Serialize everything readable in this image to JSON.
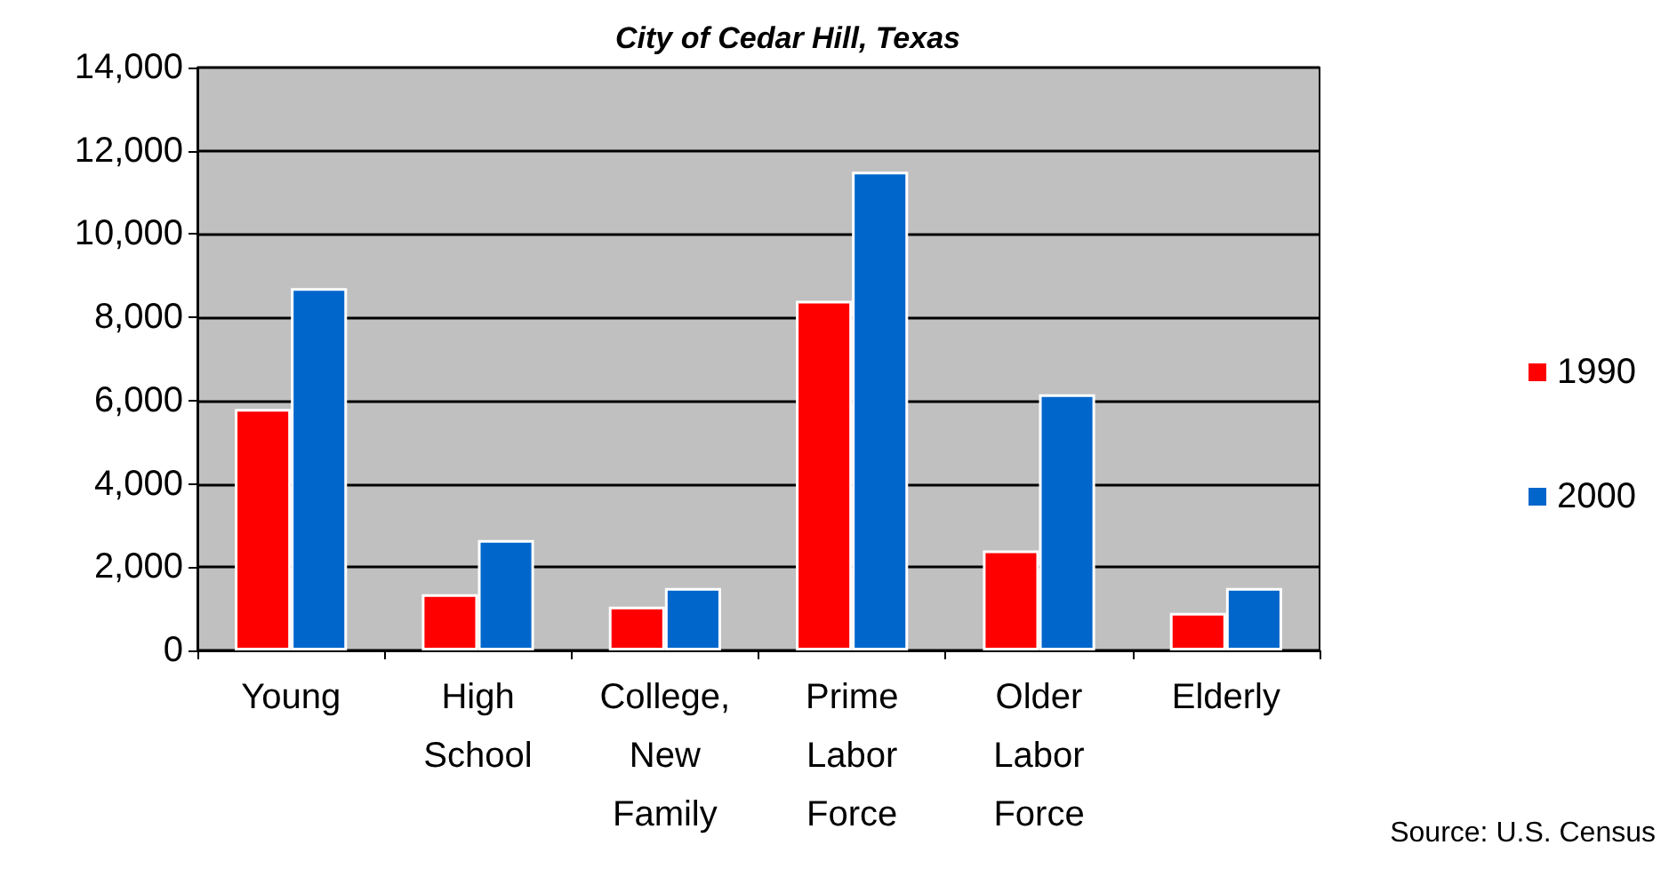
{
  "chart_data": {
    "type": "bar",
    "title": "City of Cedar Hill, Texas",
    "categories": [
      "Young",
      "High\nSchool",
      "College,\nNew\nFamily",
      "Prime\nLabor\nForce",
      "Older\nLabor\nForce",
      "Elderly"
    ],
    "series": [
      {
        "name": "1990",
        "color": "#ff0000",
        "values": [
          5800,
          1350,
          1050,
          8400,
          2400,
          900
        ]
      },
      {
        "name": "2000",
        "color": "#0066cc",
        "values": [
          8700,
          2650,
          1500,
          11500,
          6150,
          1500
        ]
      }
    ],
    "ylim": [
      0,
      14000
    ],
    "yticks": [
      0,
      {
        "value": 2000,
        "label": "2,000"
      },
      {
        "value": 4000,
        "label": "4,000"
      },
      {
        "value": 6000,
        "label": "6,000"
      },
      {
        "value": 8000,
        "label": "8,000"
      },
      {
        "value": 10000,
        "label": "10,000"
      },
      {
        "value": 12000,
        "label": "12,000"
      },
      {
        "value": 14000,
        "label": "14,000"
      }
    ],
    "grid": "y",
    "legend": "right",
    "annotations": [
      "Source: U.S. Census"
    ]
  }
}
